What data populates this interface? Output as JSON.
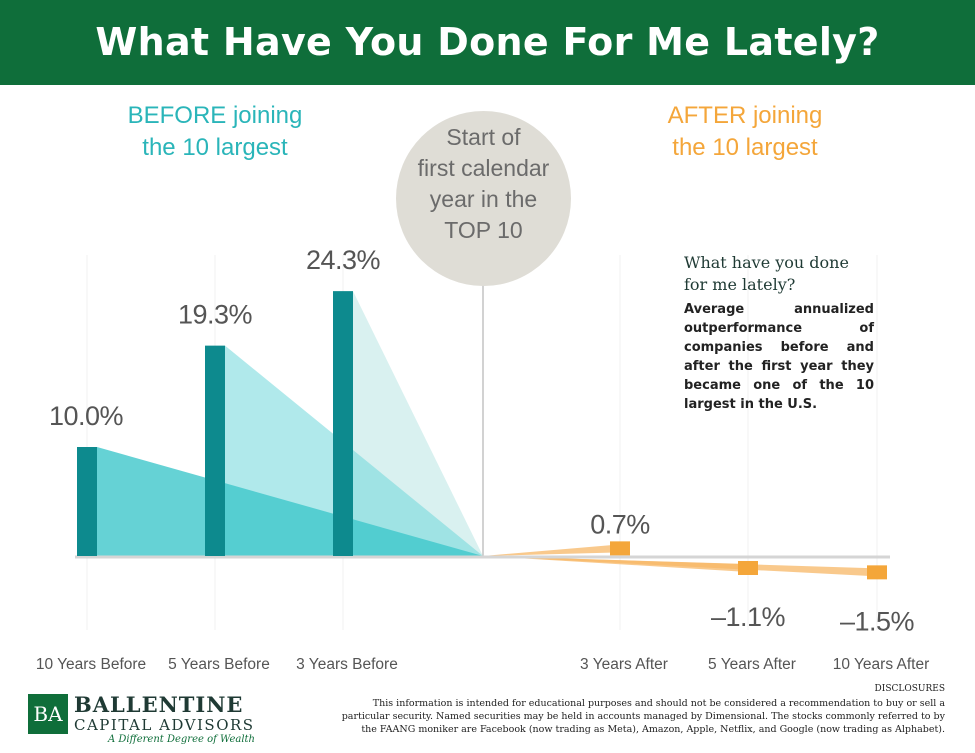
{
  "banner": {
    "title": "What Have You Done For Me Lately?"
  },
  "before_title": [
    "BEFORE joining",
    "the 10 largest"
  ],
  "after_title": [
    "AFTER joining",
    "the 10 largest"
  ],
  "marker": [
    "Start of",
    "first calendar",
    "year in the",
    "TOP 10"
  ],
  "note": {
    "title": [
      "What have you done",
      "for me lately?"
    ],
    "body": "Average annualized outperformance of companies before and after the first year they became one of the 10 largest in the U.S."
  },
  "chart_data": {
    "type": "bar",
    "categories": [
      "10 Years Before",
      "5 Years Before",
      "3 Years Before",
      "3 Years After",
      "5 Years After",
      "10 Years After"
    ],
    "values": [
      10.0,
      19.3,
      24.3,
      0.7,
      -1.1,
      -1.5
    ],
    "data_labels": [
      "10.0%",
      "19.3%",
      "24.3%",
      "0.7%",
      "–1.1%",
      "–1.5%"
    ],
    "title": "",
    "xlabel": "",
    "ylabel": "",
    "ylim": [
      -2,
      26
    ],
    "grid": false,
    "colors": {
      "before": "#0d8a8e",
      "before_fill": "#39c6cb",
      "after": "#f4a63a",
      "after_fill": "#f7b766",
      "axis": "#cccccc"
    }
  },
  "logo": {
    "mark": "BA",
    "name1": "BALLENTINE",
    "name2": "CAPITAL ADVISORS",
    "tagline": "A Different Degree of Wealth"
  },
  "disclosures": {
    "heading": "DISCLOSURES",
    "body": "This information is intended for educational purposes and should not be considered a recommendation to buy or sell a particular security. Named securities may be held in accounts managed by Dimensional. The stocks commonly referred to by the FAANG moniker are Facebook (now trading as Meta), Amazon, Apple, Netflix, and Google (now trading as Alphabet)."
  }
}
